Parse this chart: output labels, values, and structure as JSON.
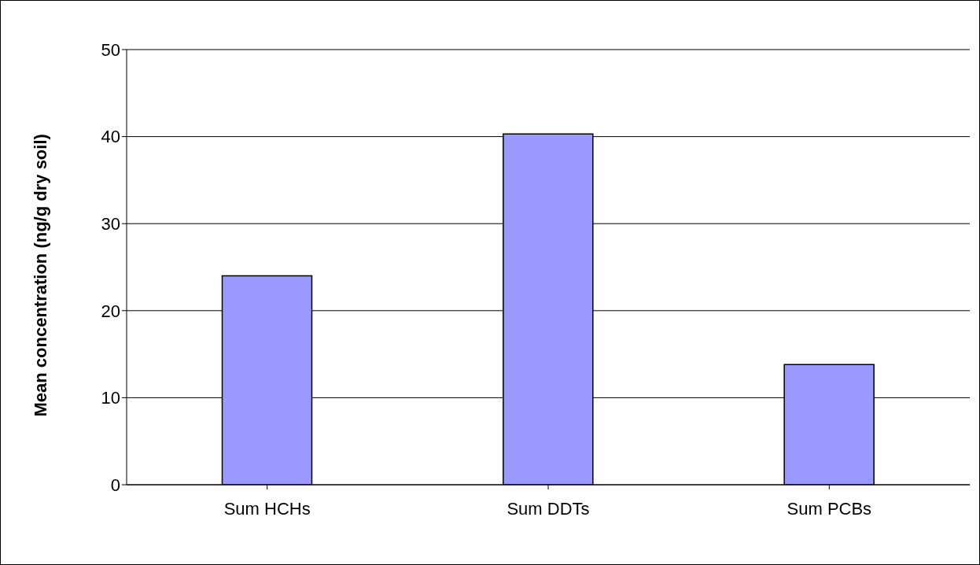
{
  "chart_data": {
    "type": "bar",
    "ylabel": "Mean concentration (ng/g dry soil)",
    "categories": [
      "Sum HCHs",
      "Sum DDTs",
      "Sum PCBs"
    ],
    "values": [
      24,
      40.3,
      13.8
    ],
    "color": "#9999ff",
    "ylim": [
      0,
      50
    ],
    "yticks": [
      0,
      10,
      20,
      30,
      40,
      50
    ],
    "grid": "y"
  }
}
